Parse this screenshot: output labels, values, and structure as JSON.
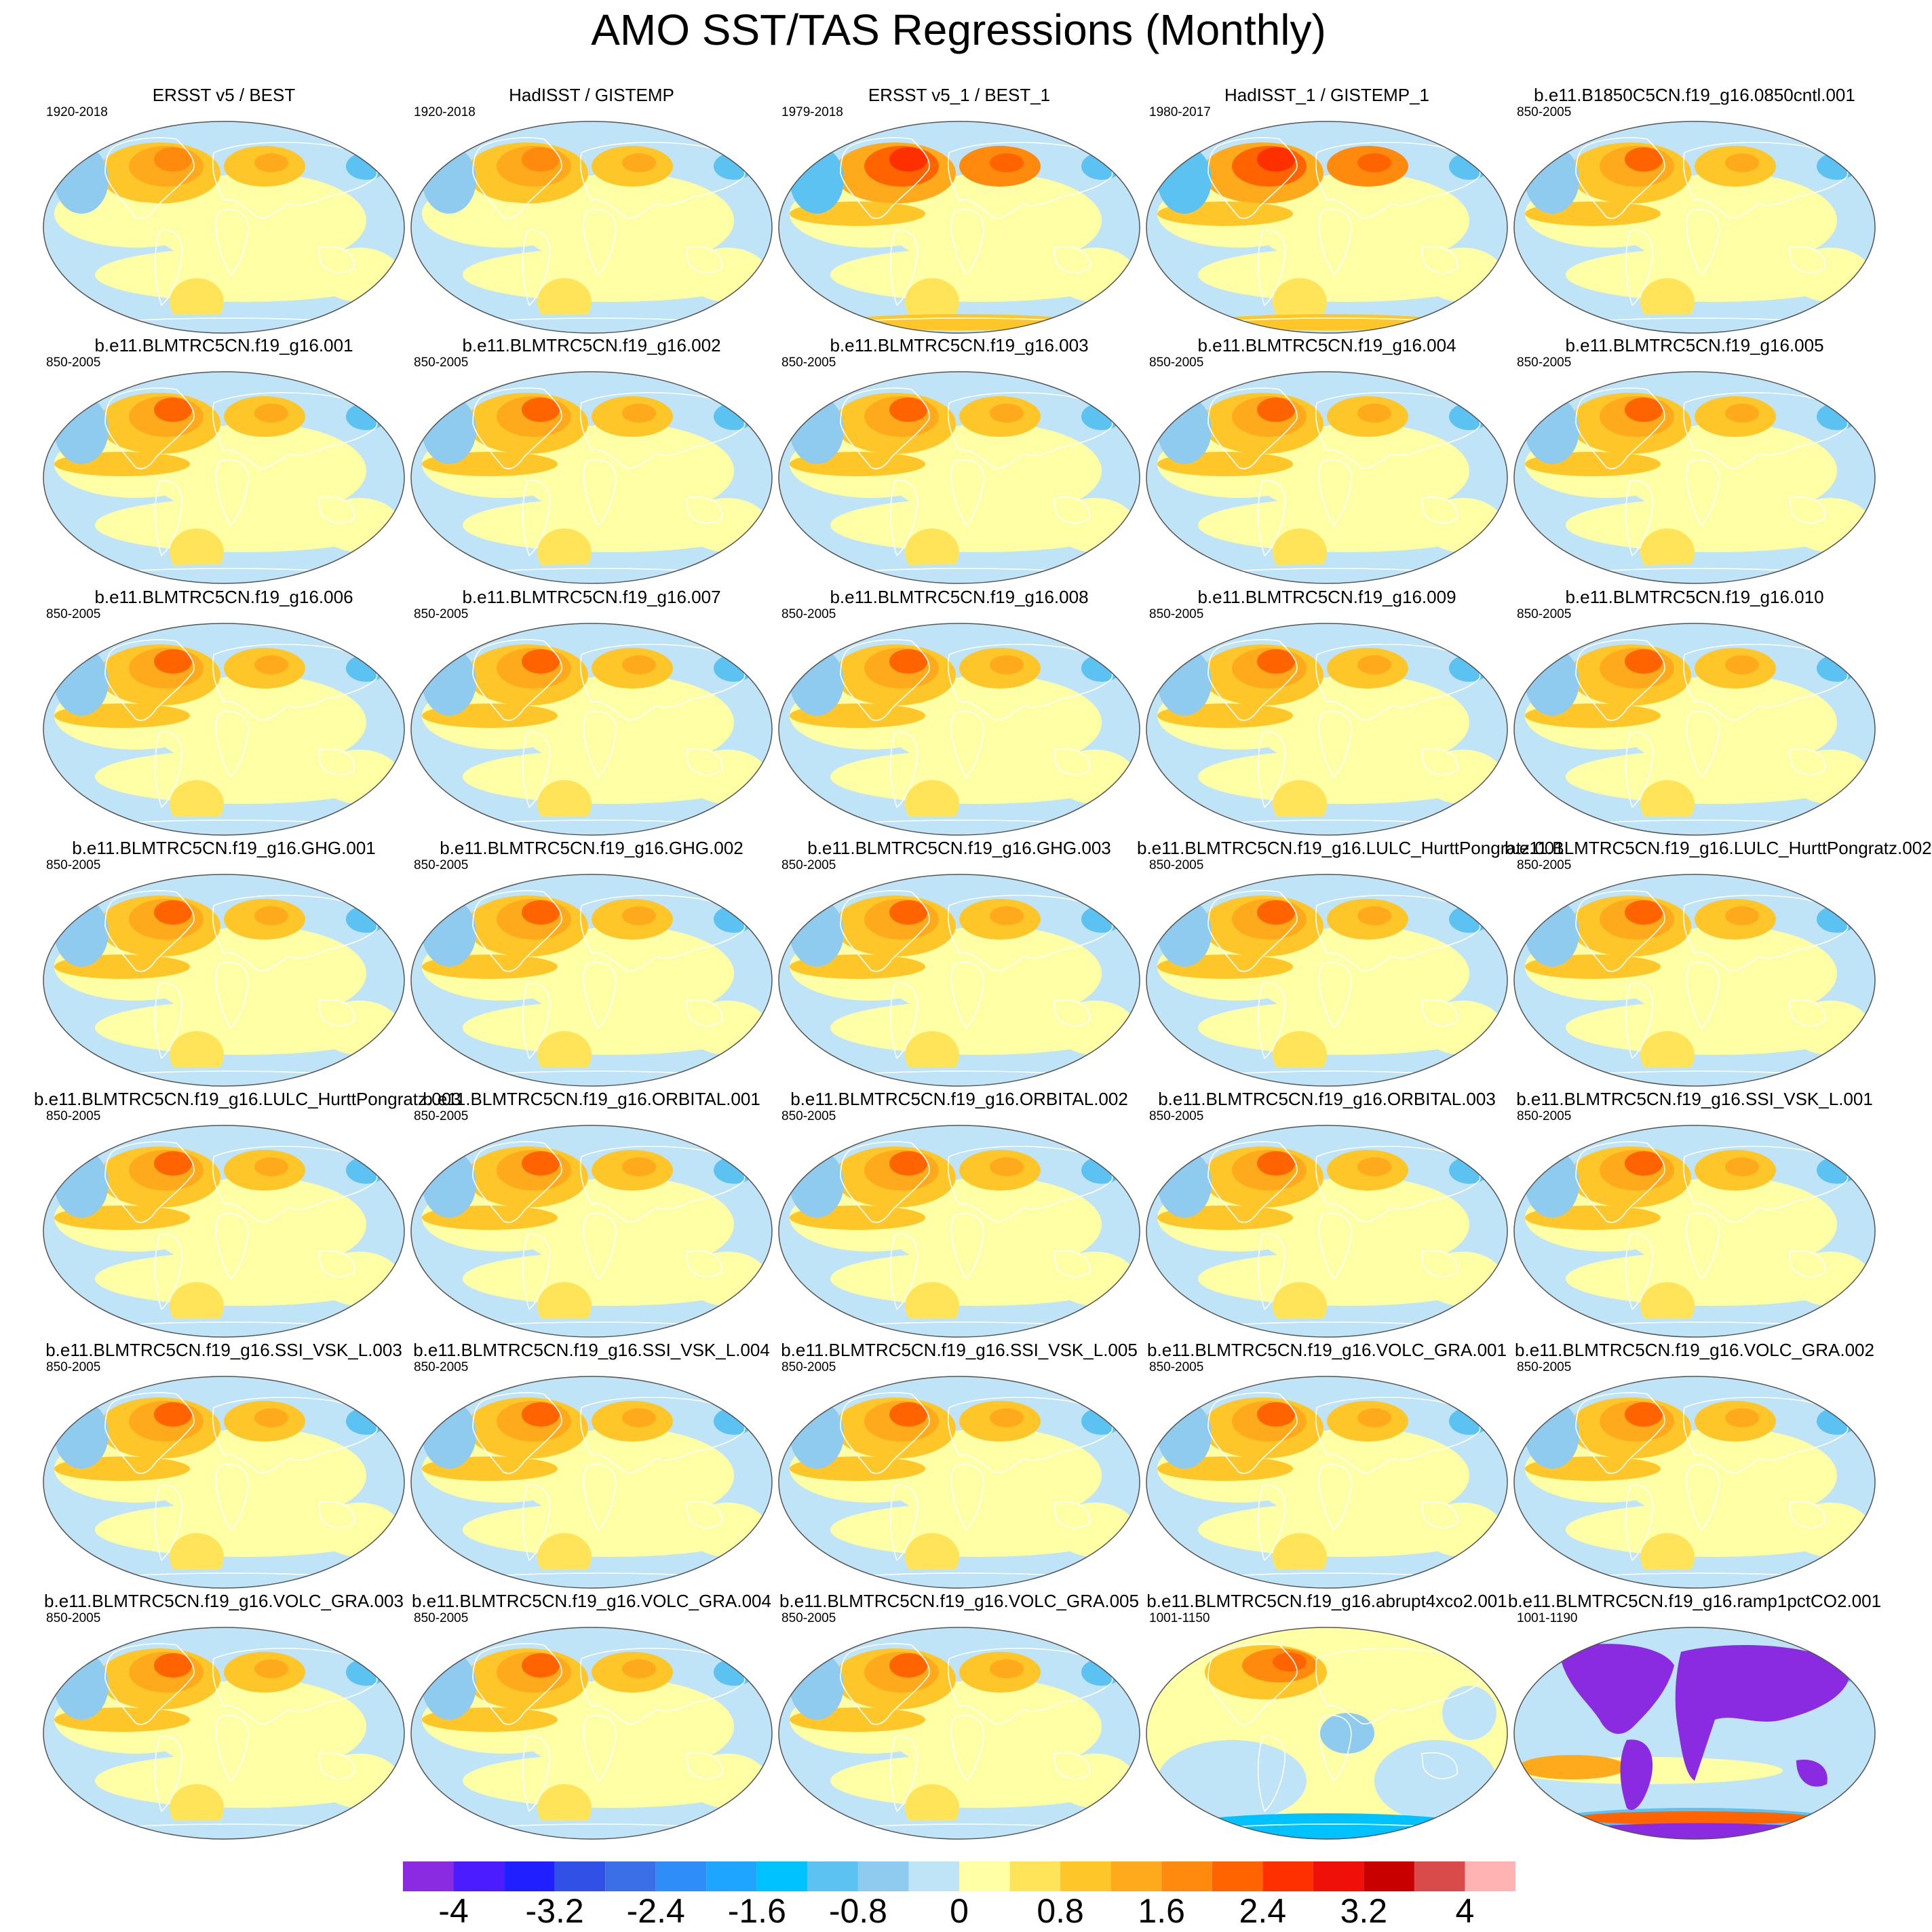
{
  "title": "AMO SST/TAS Regressions (Monthly)",
  "colors": {
    "land_outline": "#ffffff",
    "map_border": "#555555"
  },
  "colorbar": {
    "colors": [
      "#8a2be2",
      "#4b1cff",
      "#1f1fff",
      "#3050e6",
      "#3a6fe8",
      "#2f8dfa",
      "#1ea5ff",
      "#00c2ff",
      "#5cc2f2",
      "#8ecbee",
      "#bfe3f7",
      "#ffffa6",
      "#ffe45a",
      "#ffc62a",
      "#ffaa1c",
      "#ff8a0e",
      "#ff6400",
      "#ff3000",
      "#f0100a",
      "#c80000",
      "#d94a4a",
      "#ffb3b3"
    ],
    "labels": [
      "-4",
      "-3.2",
      "-2.4",
      "-1.6",
      "-0.8",
      "0",
      "0.8",
      "1.6",
      "2.4",
      "3.2",
      "4"
    ]
  },
  "panels": [
    {
      "title": "ERSST v5 / BEST",
      "period": "1920-2018",
      "style": "obs"
    },
    {
      "title": "HadISST / GISTEMP",
      "period": "1920-2018",
      "style": "obs"
    },
    {
      "title": "ERSST v5_1 / BEST_1",
      "period": "1979-2018",
      "style": "obs_strong"
    },
    {
      "title": "HadISST_1 / GISTEMP_1",
      "period": "1980-2017",
      "style": "obs_strong"
    },
    {
      "title": "b.e11.B1850C5CN.f19_g16.0850cntl.001",
      "period": "850-2005",
      "style": "model"
    },
    {
      "title": "b.e11.BLMTRC5CN.f19_g16.001",
      "period": "850-2005",
      "style": "model"
    },
    {
      "title": "b.e11.BLMTRC5CN.f19_g16.002",
      "period": "850-2005",
      "style": "model"
    },
    {
      "title": "b.e11.BLMTRC5CN.f19_g16.003",
      "period": "850-2005",
      "style": "model"
    },
    {
      "title": "b.e11.BLMTRC5CN.f19_g16.004",
      "period": "850-2005",
      "style": "model"
    },
    {
      "title": "b.e11.BLMTRC5CN.f19_g16.005",
      "period": "850-2005",
      "style": "model"
    },
    {
      "title": "b.e11.BLMTRC5CN.f19_g16.006",
      "period": "850-2005",
      "style": "model"
    },
    {
      "title": "b.e11.BLMTRC5CN.f19_g16.007",
      "period": "850-2005",
      "style": "model"
    },
    {
      "title": "b.e11.BLMTRC5CN.f19_g16.008",
      "period": "850-2005",
      "style": "model"
    },
    {
      "title": "b.e11.BLMTRC5CN.f19_g16.009",
      "period": "850-2005",
      "style": "model"
    },
    {
      "title": "b.e11.BLMTRC5CN.f19_g16.010",
      "period": "850-2005",
      "style": "model"
    },
    {
      "title": "b.e11.BLMTRC5CN.f19_g16.GHG.001",
      "period": "850-2005",
      "style": "model"
    },
    {
      "title": "b.e11.BLMTRC5CN.f19_g16.GHG.002",
      "period": "850-2005",
      "style": "model"
    },
    {
      "title": "b.e11.BLMTRC5CN.f19_g16.GHG.003",
      "period": "850-2005",
      "style": "model"
    },
    {
      "title": "b.e11.BLMTRC5CN.f19_g16.LULC_HurttPongratz.001",
      "period": "850-2005",
      "style": "model"
    },
    {
      "title": "b.e11.BLMTRC5CN.f19_g16.LULC_HurttPongratz.002",
      "period": "850-2005",
      "style": "model"
    },
    {
      "title": "b.e11.BLMTRC5CN.f19_g16.LULC_HurttPongratz.003",
      "period": "850-2005",
      "style": "model"
    },
    {
      "title": "b.e11.BLMTRC5CN.f19_g16.ORBITAL.001",
      "period": "850-2005",
      "style": "model"
    },
    {
      "title": "b.e11.BLMTRC5CN.f19_g16.ORBITAL.002",
      "period": "850-2005",
      "style": "model"
    },
    {
      "title": "b.e11.BLMTRC5CN.f19_g16.ORBITAL.003",
      "period": "850-2005",
      "style": "model"
    },
    {
      "title": "b.e11.BLMTRC5CN.f19_g16.SSI_VSK_L.001",
      "period": "850-2005",
      "style": "model"
    },
    {
      "title": "b.e11.BLMTRC5CN.f19_g16.SSI_VSK_L.003",
      "period": "850-2005",
      "style": "model"
    },
    {
      "title": "b.e11.BLMTRC5CN.f19_g16.SSI_VSK_L.004",
      "period": "850-2005",
      "style": "model"
    },
    {
      "title": "b.e11.BLMTRC5CN.f19_g16.SSI_VSK_L.005",
      "period": "850-2005",
      "style": "model"
    },
    {
      "title": "b.e11.BLMTRC5CN.f19_g16.VOLC_GRA.001",
      "period": "850-2005",
      "style": "model"
    },
    {
      "title": "b.e11.BLMTRC5CN.f19_g16.VOLC_GRA.002",
      "period": "850-2005",
      "style": "model"
    },
    {
      "title": "b.e11.BLMTRC5CN.f19_g16.VOLC_GRA.003",
      "period": "850-2005",
      "style": "model"
    },
    {
      "title": "b.e11.BLMTRC5CN.f19_g16.VOLC_GRA.004",
      "period": "850-2005",
      "style": "model"
    },
    {
      "title": "b.e11.BLMTRC5CN.f19_g16.VOLC_GRA.005",
      "period": "850-2005",
      "style": "model"
    },
    {
      "title": "b.e11.BLMTRC5CN.f19_g16.abrupt4xco2.001",
      "period": "1001-1150",
      "style": "abrupt"
    },
    {
      "title": "b.e11.BLMTRC5CN.f19_g16.ramp1pctCO2.001",
      "period": "1001-1190",
      "style": "ramp"
    }
  ]
}
